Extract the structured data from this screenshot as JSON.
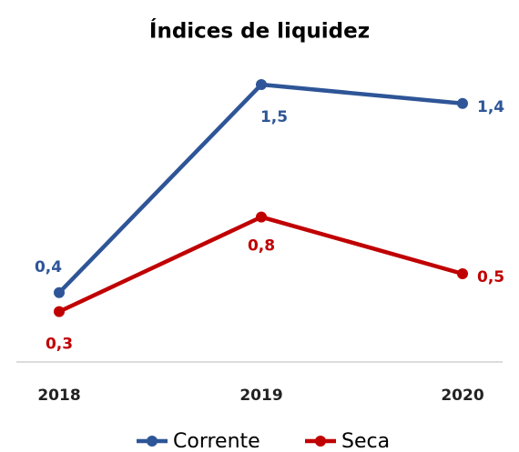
{
  "chart_data": {
    "type": "line",
    "title": "Índices de liquidez",
    "categories": [
      "2018",
      "2019",
      "2020"
    ],
    "series": [
      {
        "name": "Corrente",
        "color": "#2e5597",
        "values": [
          0.4,
          1.5,
          1.4
        ],
        "value_labels": [
          "0,4",
          "1,5",
          "1,4"
        ]
      },
      {
        "name": "Seca",
        "color": "#c00000",
        "values": [
          0.3,
          0.8,
          0.5
        ],
        "value_labels": [
          "0,3",
          "0,8",
          "0,5"
        ]
      }
    ],
    "legend": "bottom"
  }
}
